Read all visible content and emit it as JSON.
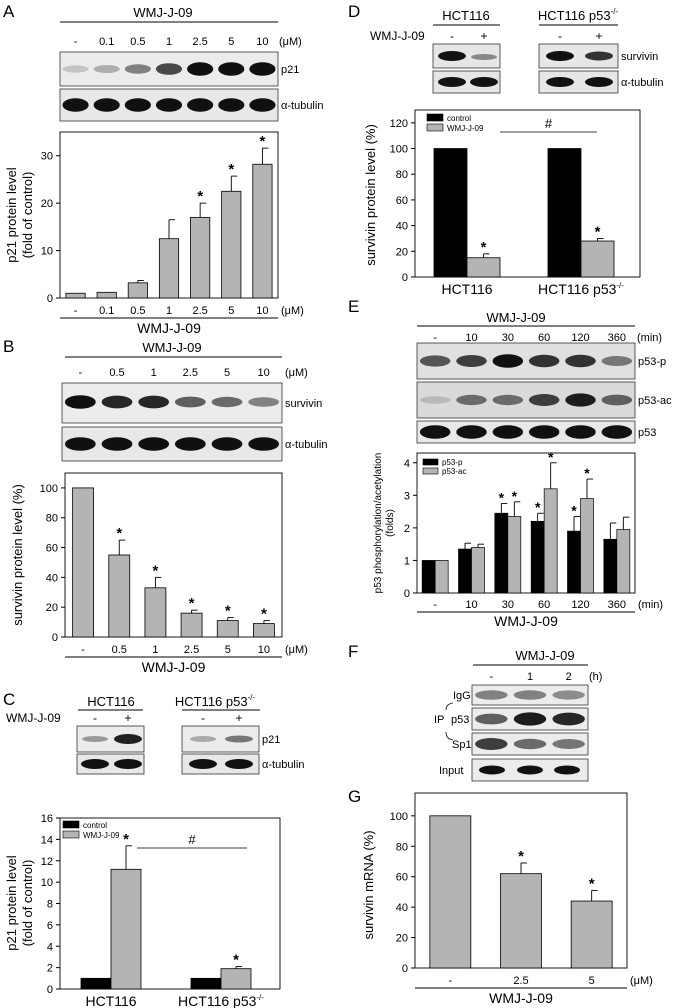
{
  "figure": {
    "panel_labels": [
      "A",
      "B",
      "C",
      "D",
      "E",
      "F",
      "G"
    ],
    "unit_um": "(μM)",
    "unit_min": "(min)",
    "unit_h": "(h)",
    "drug": "WMJ-J-09",
    "star": "*",
    "hash": "#",
    "cells": {
      "wt": "HCT116",
      "ko_base": "HCT116 p53",
      "ko_sup": "-/-"
    },
    "legend_control": "control",
    "blot_labels": {
      "p21": "p21",
      "tubulin": "α-tubulin",
      "survivin": "survivin",
      "p53p": "p53-p",
      "p53ac": "p53-ac",
      "p53": "p53",
      "igg": "IgG",
      "ip": "IP",
      "p53ip": "p53",
      "sp1": "Sp1",
      "input": "Input"
    },
    "pm": [
      "-",
      "+"
    ]
  },
  "chart_data": [
    {
      "panel": "A",
      "type": "bar",
      "categories": [
        "-",
        "0.1",
        "0.5",
        "1",
        "2.5",
        "5",
        "10"
      ],
      "values": [
        1,
        1.2,
        3.2,
        12.5,
        17,
        22.5,
        28.2
      ],
      "errors": [
        0,
        0,
        0.5,
        4,
        3,
        3.2,
        3.4
      ],
      "significant": [
        false,
        false,
        false,
        false,
        true,
        true,
        true
      ],
      "ylabel": "p21 protein level",
      "ylabel2": "(fold of control)",
      "xlabel": "WMJ-J-09",
      "ylim": [
        0,
        35
      ],
      "yticks": [
        0,
        10,
        20,
        30
      ]
    },
    {
      "panel": "B",
      "type": "bar",
      "categories": [
        "-",
        "0.5",
        "1",
        "2.5",
        "5",
        "10"
      ],
      "values": [
        100,
        55,
        33,
        16,
        11,
        9
      ],
      "errors": [
        0,
        10,
        7,
        2,
        2,
        2
      ],
      "significant": [
        false,
        true,
        true,
        true,
        true,
        true
      ],
      "ylabel": "survivin protein level (%)",
      "xlabel": "WMJ-J-09",
      "ylim": [
        0,
        110
      ],
      "yticks": [
        0,
        20,
        40,
        60,
        80,
        100
      ]
    },
    {
      "panel": "C",
      "type": "bar",
      "groups": [
        "HCT116",
        "HCT116 p53-/-"
      ],
      "series": [
        {
          "name": "control",
          "values": [
            1,
            1
          ],
          "errors": [
            0,
            0
          ],
          "color": "#000000"
        },
        {
          "name": "WMJ-J-09",
          "values": [
            11.2,
            1.9
          ],
          "errors": [
            2.2,
            0.2
          ],
          "color": "#b4b4b4"
        }
      ],
      "ylabel": "p21 protein level",
      "ylabel2": "(fold of control)",
      "ylim": [
        0,
        16
      ],
      "yticks": [
        0,
        2,
        4,
        6,
        8,
        10,
        12,
        14,
        16
      ]
    },
    {
      "panel": "D",
      "type": "bar",
      "groups": [
        "HCT116",
        "HCT116 p53-/-"
      ],
      "series": [
        {
          "name": "control",
          "values": [
            100,
            100
          ],
          "errors": [
            0,
            0
          ],
          "color": "#000000"
        },
        {
          "name": "WMJ-J-09",
          "values": [
            15,
            28
          ],
          "errors": [
            3,
            2
          ],
          "color": "#b4b4b4"
        }
      ],
      "ylabel": "survivin protein level (%)",
      "ylim": [
        0,
        130
      ],
      "yticks": [
        0,
        20,
        40,
        60,
        80,
        100,
        120
      ]
    },
    {
      "panel": "E",
      "type": "bar",
      "categories": [
        "-",
        "10",
        "30",
        "60",
        "120",
        "360"
      ],
      "series": [
        {
          "name": "p53-p",
          "values": [
            1,
            1.35,
            2.45,
            2.2,
            1.9,
            1.65
          ],
          "errors": [
            0,
            0.18,
            0.3,
            0.25,
            0.45,
            0.5
          ],
          "significant": [
            false,
            false,
            true,
            true,
            true,
            false
          ],
          "color": "#000000"
        },
        {
          "name": "p53-ac",
          "values": [
            1,
            1.4,
            2.35,
            3.2,
            2.9,
            1.95
          ],
          "errors": [
            0,
            0.1,
            0.45,
            0.8,
            0.6,
            0.38
          ],
          "significant": [
            false,
            false,
            true,
            true,
            true,
            false
          ],
          "color": "#b4b4b4"
        }
      ],
      "ylabel": "p53 phosphorylation/acetylation",
      "ylabel2": "(folds)",
      "xlabel": "WMJ-J-09",
      "ylim": [
        0,
        4.3
      ],
      "yticks": [
        0,
        1,
        2,
        3,
        4
      ]
    },
    {
      "panel": "G",
      "type": "bar",
      "categories": [
        "-",
        "2.5",
        "5"
      ],
      "values": [
        100,
        62,
        44
      ],
      "errors": [
        0,
        7,
        7
      ],
      "significant": [
        false,
        true,
        true
      ],
      "ylabel": "survivin mRNA (%)",
      "xlabel": "WMJ-J-09",
      "ylim": [
        0,
        115
      ],
      "yticks": [
        0,
        20,
        40,
        60,
        80,
        100
      ]
    }
  ],
  "blots": {
    "A": {
      "lanes": [
        "-",
        "0.1",
        "0.5",
        "1",
        "2.5",
        "5",
        "10"
      ],
      "p21": [
        0.15,
        0.25,
        0.45,
        0.7,
        0.95,
        0.95,
        0.95
      ]
    },
    "B": {
      "lanes": [
        "-",
        "0.5",
        "1",
        "2.5",
        "5",
        "10"
      ],
      "survivin": [
        0.95,
        0.85,
        0.85,
        0.6,
        0.55,
        0.45
      ]
    },
    "E": {
      "lanes": [
        "-",
        "10",
        "30",
        "60",
        "120",
        "360"
      ],
      "p53p": [
        0.65,
        0.75,
        0.95,
        0.8,
        0.8,
        0.5
      ],
      "p53ac": [
        0.2,
        0.55,
        0.55,
        0.75,
        0.9,
        0.6
      ]
    },
    "F": {
      "lanes": [
        "-",
        "1",
        "2"
      ],
      "igg": [
        0.45,
        0.45,
        0.4
      ],
      "p53": [
        0.6,
        0.9,
        0.85
      ],
      "sp1": [
        0.75,
        0.55,
        0.5
      ]
    }
  }
}
